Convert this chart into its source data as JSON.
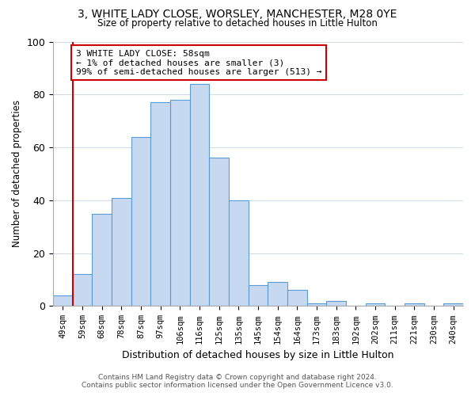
{
  "title": "3, WHITE LADY CLOSE, WORSLEY, MANCHESTER, M28 0YE",
  "subtitle": "Size of property relative to detached houses in Little Hulton",
  "xlabel": "Distribution of detached houses by size in Little Hulton",
  "ylabel": "Number of detached properties",
  "bar_labels": [
    "49sqm",
    "59sqm",
    "68sqm",
    "78sqm",
    "87sqm",
    "97sqm",
    "106sqm",
    "116sqm",
    "125sqm",
    "135sqm",
    "145sqm",
    "154sqm",
    "164sqm",
    "173sqm",
    "183sqm",
    "192sqm",
    "202sqm",
    "211sqm",
    "221sqm",
    "230sqm",
    "240sqm"
  ],
  "bar_values": [
    4,
    12,
    35,
    41,
    64,
    77,
    78,
    84,
    56,
    40,
    8,
    9,
    6,
    1,
    2,
    0,
    1,
    0,
    1,
    0,
    1
  ],
  "bar_color": "#c6d9f0",
  "bar_edge_color": "#5b9bd5",
  "highlight_line_color": "#cc0000",
  "annotation_text": "3 WHITE LADY CLOSE: 58sqm\n← 1% of detached houses are smaller (3)\n99% of semi-detached houses are larger (513) →",
  "annotation_box_color": "#ffffff",
  "annotation_box_edge": "#cc0000",
  "ylim": [
    0,
    100
  ],
  "yticks": [
    0,
    20,
    40,
    60,
    80,
    100
  ],
  "footer_line1": "Contains HM Land Registry data © Crown copyright and database right 2024.",
  "footer_line2": "Contains public sector information licensed under the Open Government Licence v3.0.",
  "background_color": "#ffffff",
  "grid_color": "#d0dce8"
}
